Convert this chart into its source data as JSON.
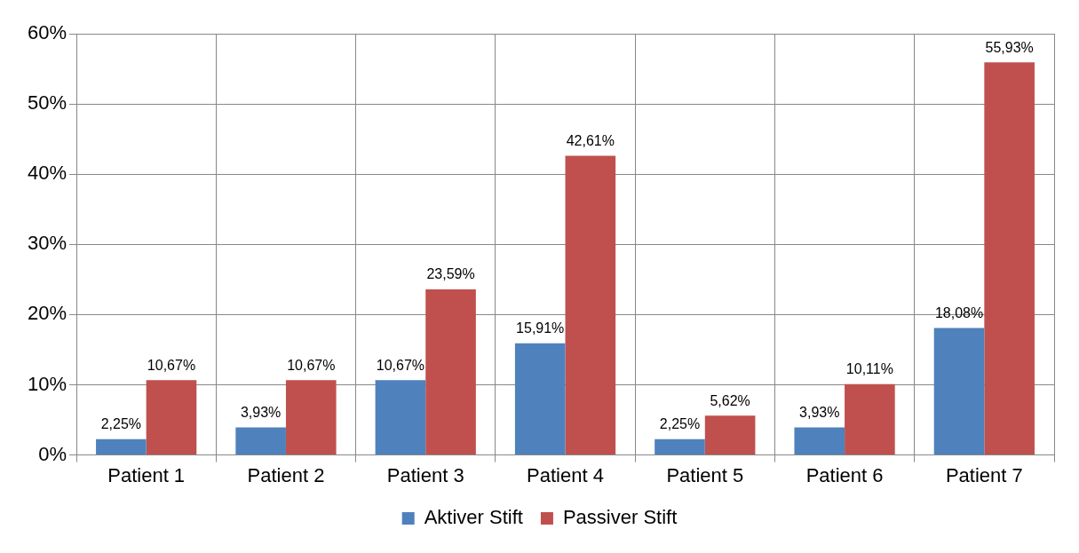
{
  "chart_data": {
    "type": "bar",
    "categories": [
      "Patient 1",
      "Patient 2",
      "Patient 3",
      "Patient 4",
      "Patient 5",
      "Patient 6",
      "Patient 7"
    ],
    "series": [
      {
        "name": "Aktiver Stift",
        "color": "#4f81bd",
        "values": [
          2.25,
          3.93,
          10.67,
          15.91,
          2.25,
          3.93,
          18.08
        ],
        "value_labels": [
          "2,25%",
          "3,93%",
          "10,67%",
          "15,91%",
          "2,25%",
          "3,93%",
          "18,08%"
        ]
      },
      {
        "name": "Passiver Stift",
        "color": "#c0504d",
        "values": [
          10.67,
          10.67,
          23.59,
          42.61,
          5.62,
          10.11,
          55.93
        ],
        "value_labels": [
          "10,67%",
          "10,67%",
          "23,59%",
          "42,61%",
          "5,62%",
          "10,11%",
          "55,93%"
        ]
      }
    ],
    "ylim": [
      0,
      60
    ],
    "yticks": [
      {
        "value": 0,
        "label": "0%"
      },
      {
        "value": 10,
        "label": "10%"
      },
      {
        "value": 20,
        "label": "20%"
      },
      {
        "value": 30,
        "label": "30%"
      },
      {
        "value": 40,
        "label": "40%"
      },
      {
        "value": 50,
        "label": "50%"
      },
      {
        "value": 60,
        "label": "60%"
      }
    ],
    "grid": true,
    "legend": "bottom"
  }
}
